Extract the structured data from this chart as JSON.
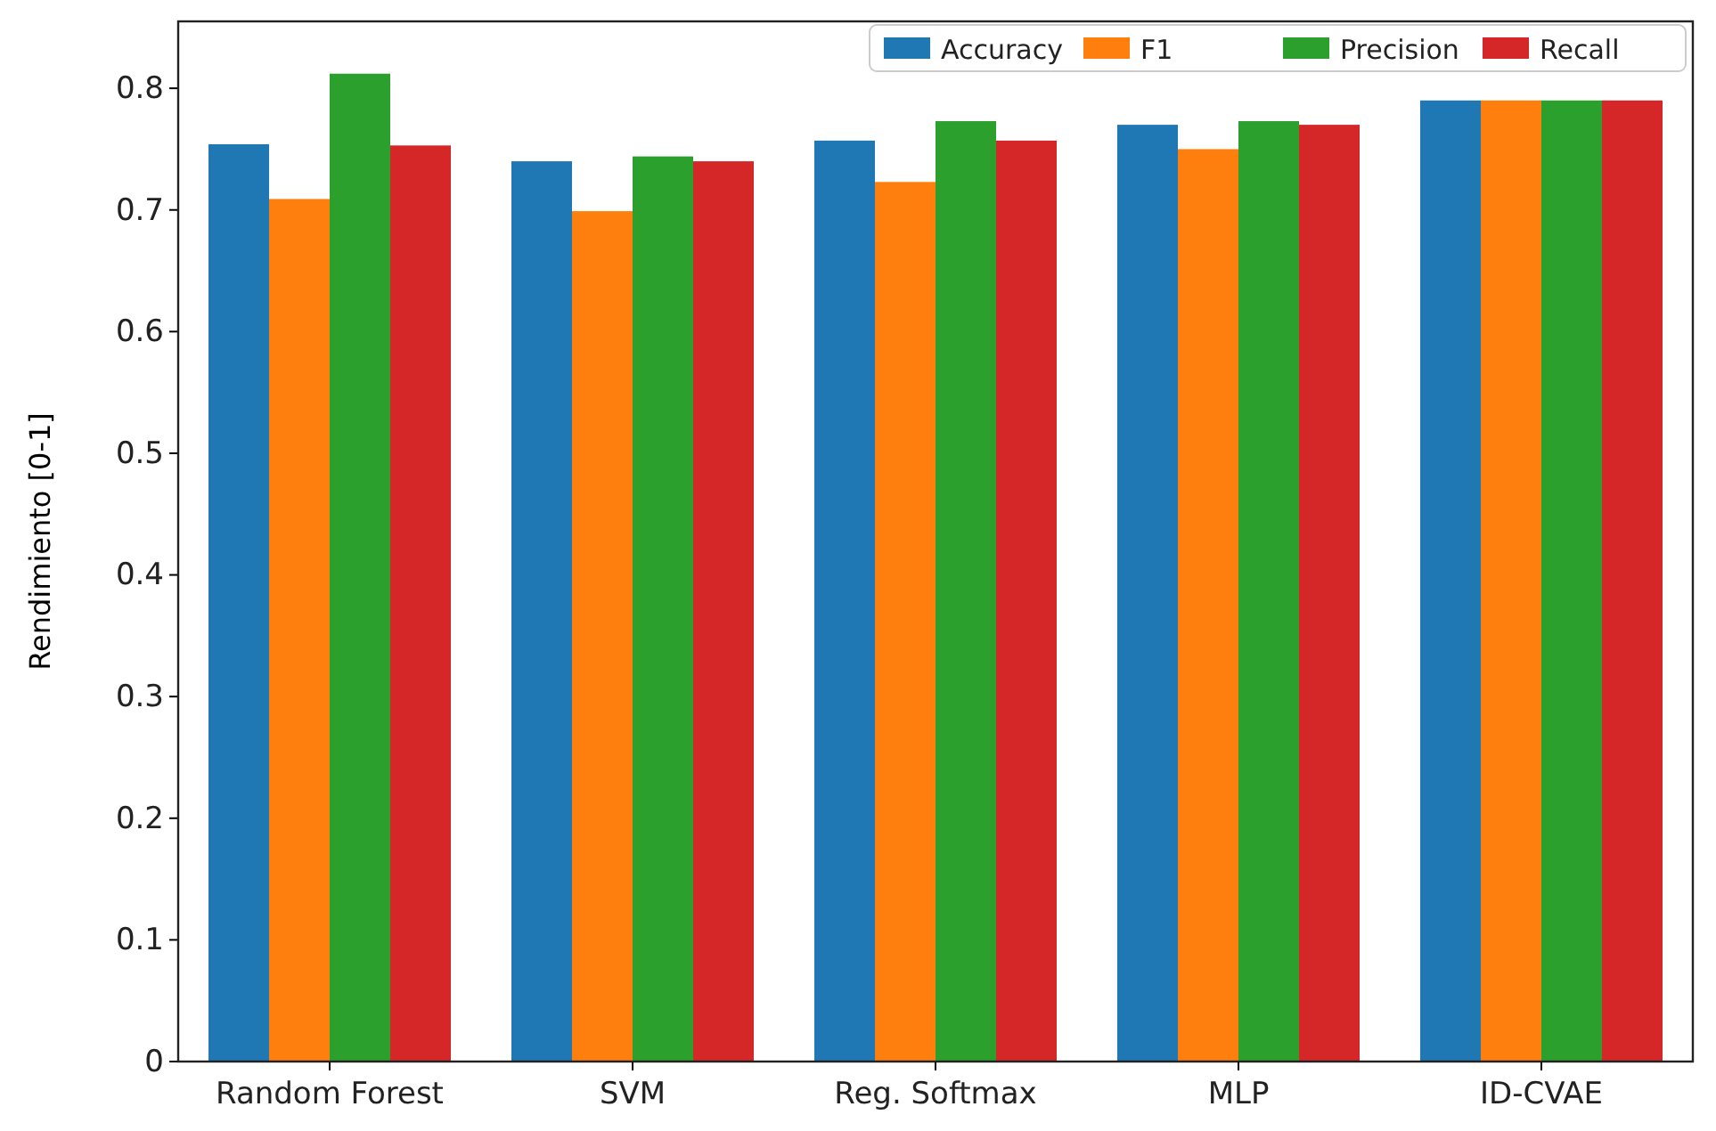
{
  "chart_data": {
    "type": "bar",
    "ylabel": "Rendimiento [0-1]",
    "categories": [
      "Random Forest",
      "SVM",
      "Reg. Softmax",
      "MLP",
      "ID-CVAE"
    ],
    "series": [
      {
        "name": "Accuracy",
        "color": "#1f77b4",
        "values": [
          0.754,
          0.74,
          0.757,
          0.77,
          0.79
        ]
      },
      {
        "name": "F1",
        "color": "#ff7f0e",
        "values": [
          0.709,
          0.699,
          0.723,
          0.75,
          0.79
        ]
      },
      {
        "name": "Precision",
        "color": "#2ca02c",
        "values": [
          0.812,
          0.744,
          0.773,
          0.773,
          0.79
        ]
      },
      {
        "name": "Recall",
        "color": "#d62728",
        "values": [
          0.753,
          0.74,
          0.757,
          0.77,
          0.79
        ]
      }
    ],
    "ylim": [
      0,
      0.855
    ],
    "yticks": [
      0,
      {
        "value": 0.1,
        "label": "0.1"
      },
      {
        "value": 0.2,
        "label": "0.2"
      },
      {
        "value": 0.3,
        "label": "0.3"
      },
      {
        "value": 0.4,
        "label": "0.4"
      },
      {
        "value": 0.5,
        "label": "0.5"
      },
      {
        "value": 0.6,
        "label": "0.6"
      },
      {
        "value": 0.7,
        "label": "0.7"
      },
      {
        "value": 0.8,
        "label": "0.8"
      }
    ],
    "grid": false,
    "legend": "top right"
  }
}
